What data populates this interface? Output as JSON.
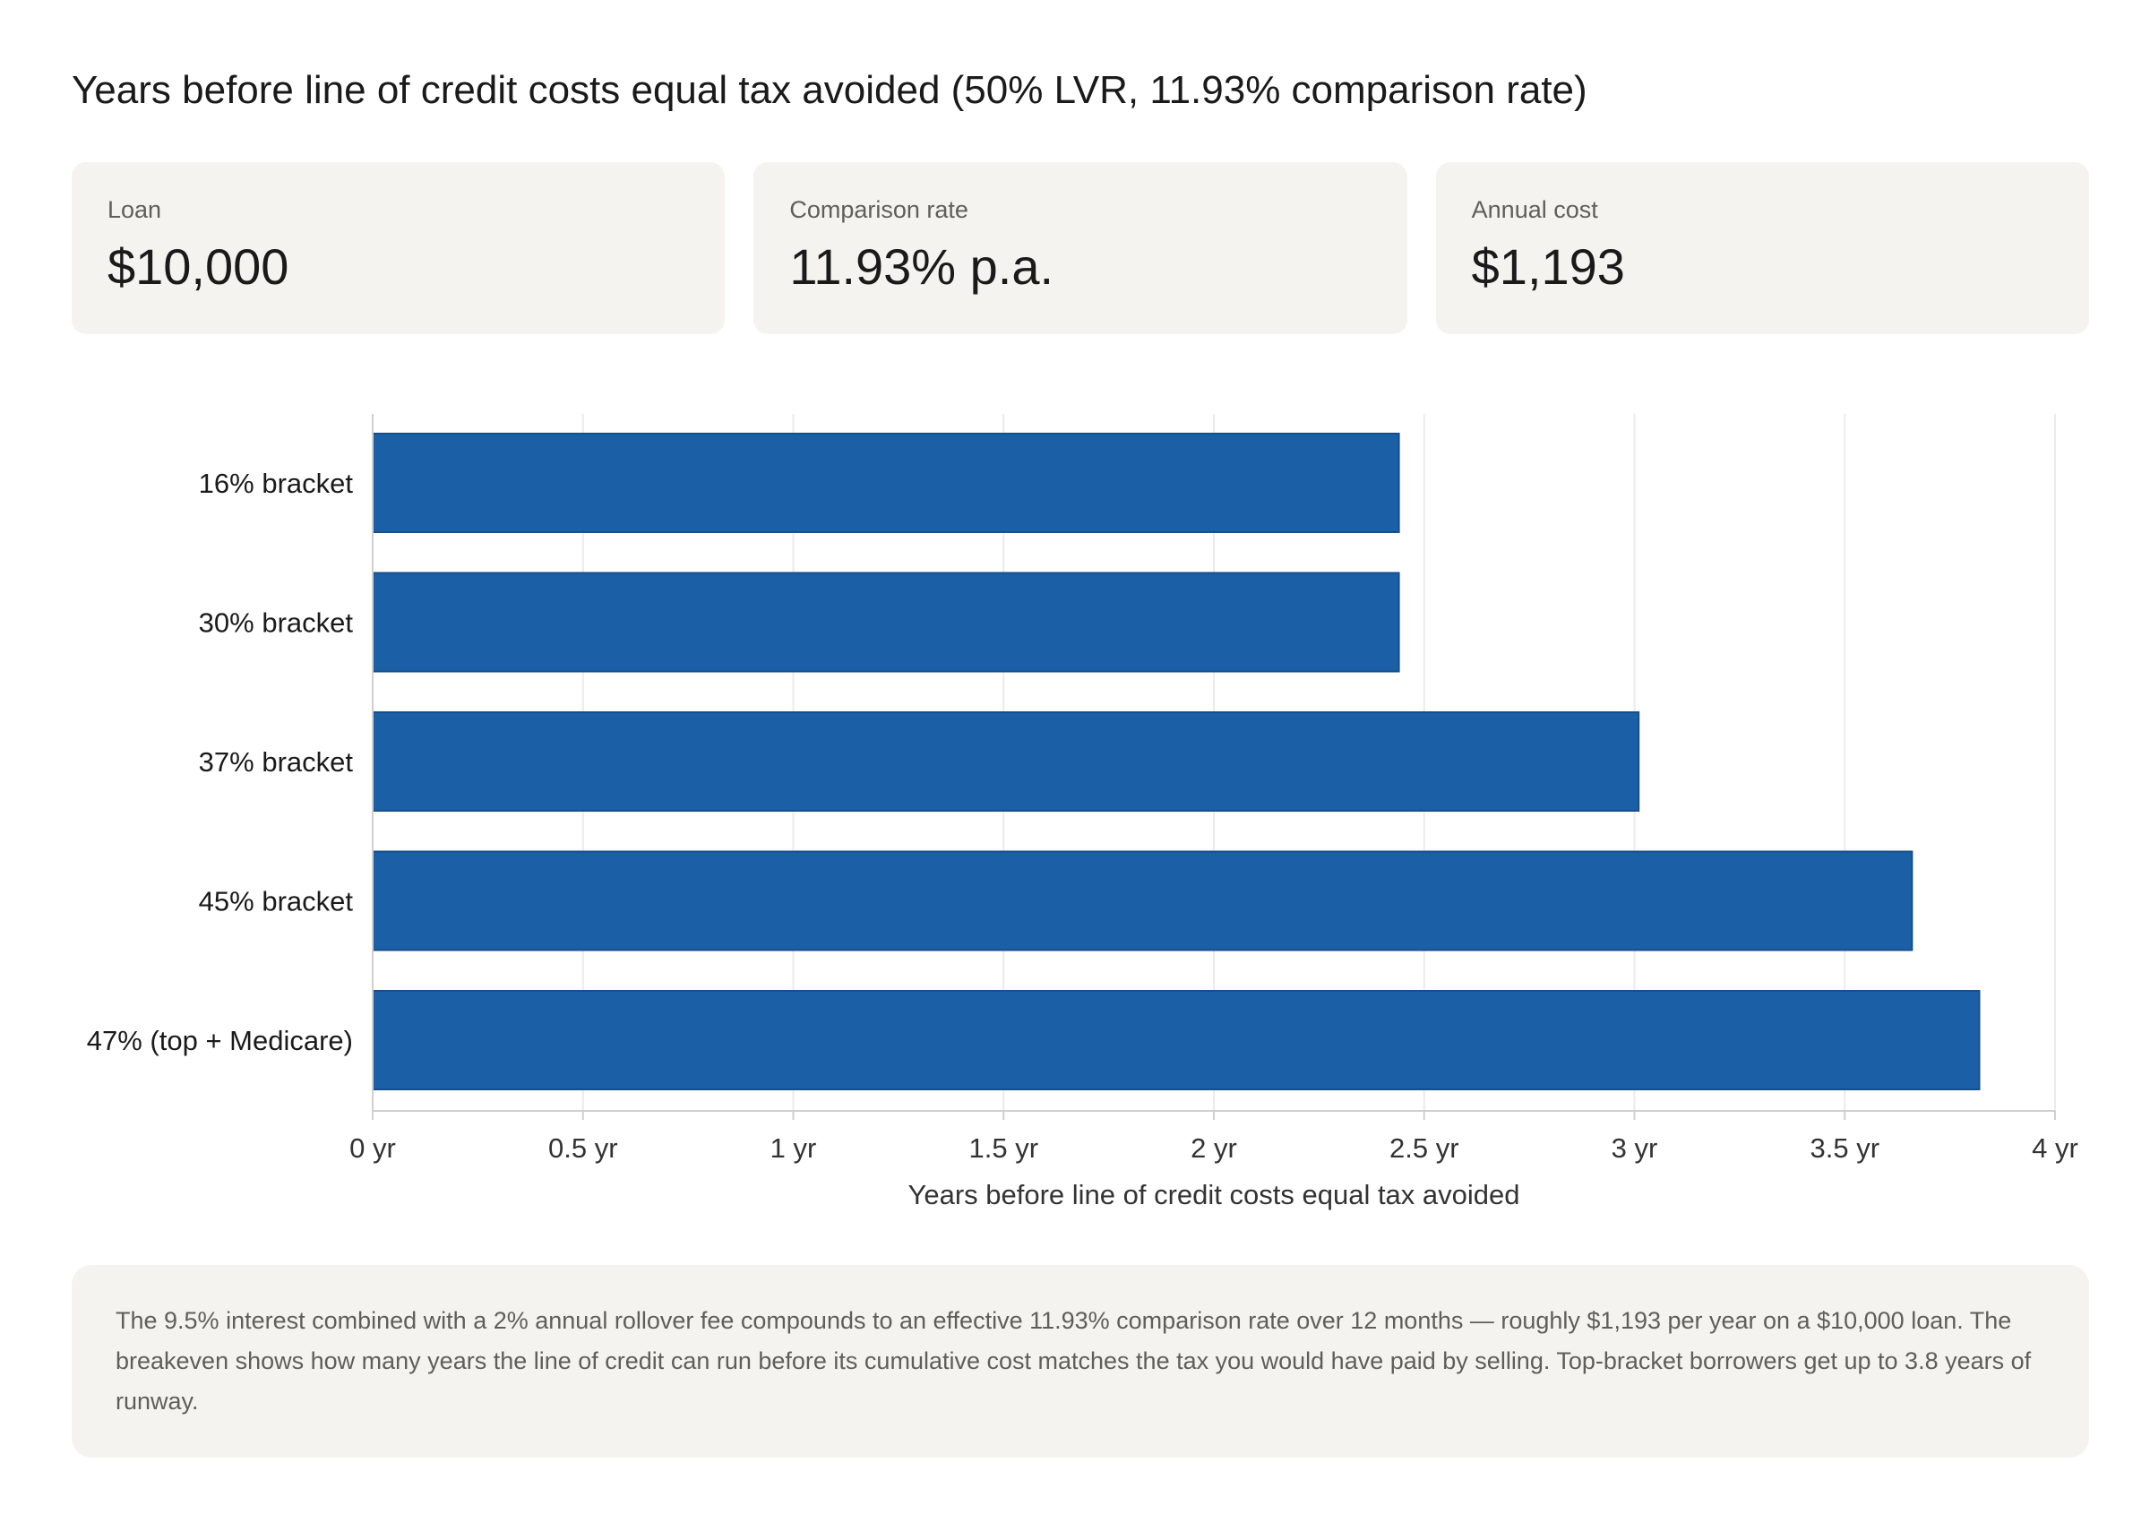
{
  "title": "Years before line of credit costs equal tax avoided (50% LVR, 11.93% comparison rate)",
  "cards": [
    {
      "label": "Loan",
      "value": "$10,000"
    },
    {
      "label": "Comparison rate",
      "value": "11.93% p.a."
    },
    {
      "label": "Annual cost",
      "value": "$1,193"
    }
  ],
  "chart_data": {
    "type": "bar",
    "orientation": "horizontal",
    "categories": [
      "16% bracket",
      "30% bracket",
      "37% bracket",
      "45% bracket",
      "47% (top + Medicare)"
    ],
    "values": [
      2.44,
      2.44,
      3.01,
      3.66,
      3.82
    ],
    "xlabel": "Years before line of credit costs equal tax avoided",
    "ylabel": "",
    "xlim": [
      0,
      4
    ],
    "ticks": [
      0,
      0.5,
      1,
      1.5,
      2,
      2.5,
      3,
      3.5,
      4
    ],
    "tick_labels": [
      "0 yr",
      "0.5 yr",
      "1 yr",
      "1.5 yr",
      "2 yr",
      "2.5 yr",
      "3 yr",
      "3.5 yr",
      "4 yr"
    ],
    "grid": true,
    "bar_color": "#1b5fa6"
  },
  "note": "The 9.5% interest combined with a 2% annual rollover fee compounds to an effective 11.93% comparison rate over 12 months — roughly $1,193 per year on a $10,000 loan. The breakeven shows how many years the line of credit can run before its cumulative cost matches the tax you would have paid by selling. Top-bracket borrowers get up to 3.8 years of runway."
}
